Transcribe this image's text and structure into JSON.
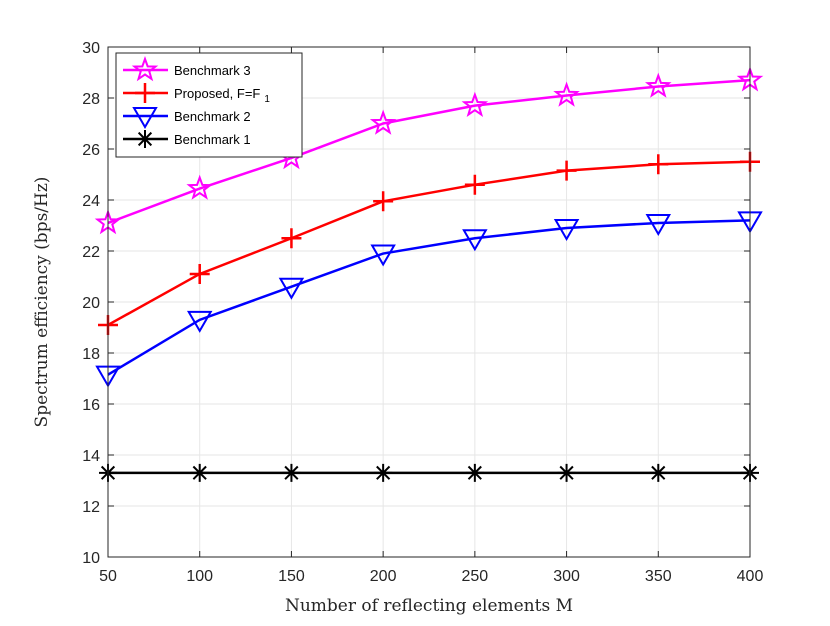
{
  "chart_data": {
    "type": "line",
    "title": "",
    "xlabel": "Number of reflecting elements M",
    "ylabel": "Spectrum efficiency (bps/Hz)",
    "xlim": [
      50,
      400
    ],
    "ylim": [
      10,
      30
    ],
    "xticks": [
      50,
      100,
      150,
      200,
      250,
      300,
      350,
      400
    ],
    "yticks": [
      10,
      12,
      14,
      16,
      18,
      20,
      22,
      24,
      26,
      28,
      30
    ],
    "grid": true,
    "legend_position": "top-left",
    "x": [
      50,
      100,
      150,
      200,
      250,
      300,
      350,
      400
    ],
    "series": [
      {
        "name": "Benchmark 3",
        "marker": "star",
        "color": "#ff00ff",
        "values": [
          23.1,
          24.45,
          25.65,
          27.0,
          27.7,
          28.1,
          28.45,
          28.7
        ]
      },
      {
        "name": "Proposed, F=F",
        "name_subscript": "1",
        "marker": "plus",
        "color": "#ff0000",
        "values": [
          19.1,
          21.1,
          22.5,
          23.95,
          24.6,
          25.15,
          25.4,
          25.5
        ]
      },
      {
        "name": "Benchmark 2",
        "marker": "triangle-down",
        "color": "#0000ff",
        "values": [
          17.15,
          19.3,
          20.6,
          21.9,
          22.5,
          22.9,
          23.1,
          23.2
        ]
      },
      {
        "name": "Benchmark 1",
        "marker": "asterisk",
        "color": "#000000",
        "values": [
          13.3,
          13.3,
          13.3,
          13.3,
          13.3,
          13.3,
          13.3,
          13.3
        ]
      }
    ]
  }
}
